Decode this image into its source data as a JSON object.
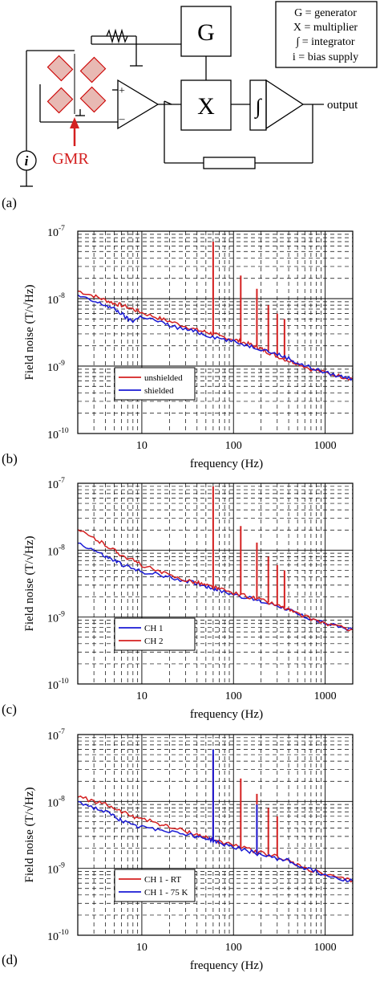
{
  "figure": {
    "panel_labels": [
      "(a)",
      "(b)",
      "(c)",
      "(d)"
    ],
    "legend_a": [
      "G = generator",
      "X = multiplier",
      "∫ = integrator",
      "i = bias supply"
    ],
    "legend_a_bold_prefix": "i",
    "blocks": {
      "generator": "G",
      "multiplier": "X",
      "integrator": "∫"
    },
    "bias_symbol": "i",
    "gmr_label": "GMR",
    "output_label": "output",
    "opamp_plus": "+",
    "opamp_minus": "–"
  },
  "chart_data": [
    {
      "type": "line",
      "panel": "(b)",
      "xlabel": "frequency (Hz)",
      "ylabel": "Field noise (T/√Hz)",
      "xscale": "log",
      "yscale": "log",
      "xlim": [
        2,
        2000
      ],
      "ylim": [
        1e-10,
        1e-07
      ],
      "xticks": [
        "10",
        "100",
        "1000"
      ],
      "yticks": [
        "10",
        "10",
        "10",
        "10"
      ],
      "ytick_exponents": [
        "-10",
        "-9",
        "-8",
        "-7"
      ],
      "grid": true,
      "legend_position": "lower-left",
      "series": [
        {
          "name": "unshielded",
          "color": "#d42020",
          "x": [
            2,
            3,
            4,
            5,
            6,
            8,
            10,
            15,
            20,
            30,
            40,
            50,
            60,
            70,
            100,
            120,
            150,
            180,
            200,
            240,
            300,
            400,
            500,
            700,
            1000,
            1500,
            2000
          ],
          "y": [
            1.3e-08,
            1.1e-08,
            9.5e-09,
            8.5e-09,
            8e-09,
            7e-09,
            6.2e-09,
            5.2e-09,
            4.6e-09,
            3.9e-09,
            3.4e-09,
            3.2e-09,
            3e-09,
            2.8e-09,
            2.5e-09,
            2.3e-09,
            2.1e-09,
            1.9e-09,
            1.8e-09,
            1.6e-09,
            1.4e-09,
            1.2e-09,
            1.1e-09,
            9e-10,
            8e-10,
            7e-10,
            6.5e-10
          ],
          "peaks": [
            [
              60,
              7e-08
            ],
            [
              120,
              2.2e-08
            ],
            [
              180,
              1.4e-08
            ],
            [
              240,
              8e-09
            ],
            [
              300,
              6e-09
            ],
            [
              360,
              5e-09
            ]
          ]
        },
        {
          "name": "shielded",
          "color": "#1a1ad4",
          "x": [
            2,
            3,
            4,
            5,
            6,
            7,
            8,
            10,
            15,
            20,
            30,
            40,
            50,
            70,
            100,
            150,
            200,
            300,
            400,
            500,
            700,
            1000,
            1500,
            2000
          ],
          "y": [
            1.1e-08,
            9e-09,
            8e-09,
            7e-09,
            6e-09,
            5e-09,
            4.7e-09,
            5.5e-09,
            4.6e-09,
            4e-09,
            3.5e-09,
            3.2e-09,
            2.9e-09,
            2.6e-09,
            2.3e-09,
            2e-09,
            1.8e-09,
            1.5e-09,
            1.3e-09,
            1.1e-09,
            9.5e-10,
            8e-10,
            7e-10,
            6.5e-10
          ],
          "peaks": []
        }
      ]
    },
    {
      "type": "line",
      "panel": "(c)",
      "xlabel": "frequency (Hz)",
      "ylabel": "Field noise (T/√Hz)",
      "xscale": "log",
      "yscale": "log",
      "xlim": [
        2,
        2000
      ],
      "ylim": [
        1e-10,
        1e-07
      ],
      "xticks": [
        "10",
        "100",
        "1000"
      ],
      "yticks": [
        "10",
        "10",
        "10",
        "10"
      ],
      "ytick_exponents": [
        "-10",
        "-9",
        "-8",
        "-7"
      ],
      "grid": true,
      "legend_position": "lower-left",
      "series": [
        {
          "name": "CH 1",
          "color": "#1a1ad4",
          "x": [
            2,
            3,
            4,
            5,
            6,
            8,
            10,
            15,
            20,
            30,
            40,
            50,
            60,
            70,
            100,
            150,
            200,
            300,
            400,
            500,
            700,
            1000,
            1500,
            2000
          ],
          "y": [
            1.3e-08,
            1e-08,
            8e-09,
            7e-09,
            6.2e-09,
            5.2e-09,
            4.8e-09,
            4.3e-09,
            3.9e-09,
            3.5e-09,
            3.2e-09,
            2.9e-09,
            2.7e-09,
            2.5e-09,
            2.2e-09,
            1.9e-09,
            1.7e-09,
            1.5e-09,
            1.3e-09,
            1.1e-09,
            9.5e-10,
            8e-10,
            7e-10,
            6.5e-10
          ],
          "peaks": []
        },
        {
          "name": "CH 2",
          "color": "#d42020",
          "x": [
            2,
            3,
            4,
            5,
            6,
            8,
            10,
            15,
            20,
            30,
            40,
            50,
            60,
            70,
            100,
            150,
            200,
            300,
            400,
            500,
            700,
            1000,
            1500,
            2000
          ],
          "y": [
            2e-08,
            1.5e-08,
            1.2e-08,
            1e-08,
            8.5e-09,
            7e-09,
            6e-09,
            4.8e-09,
            4.2e-09,
            3.6e-09,
            3.3e-09,
            3e-09,
            2.8e-09,
            2.6e-09,
            2.3e-09,
            2e-09,
            1.8e-09,
            1.5e-09,
            1.3e-09,
            1.1e-09,
            9.5e-10,
            8e-10,
            7e-10,
            6.5e-10
          ],
          "peaks": [
            [
              60,
              9e-08
            ],
            [
              120,
              2.3e-08
            ],
            [
              180,
              1.3e-08
            ],
            [
              240,
              8e-09
            ],
            [
              300,
              6e-09
            ],
            [
              360,
              5e-09
            ]
          ]
        }
      ]
    },
    {
      "type": "line",
      "panel": "(d)",
      "xlabel": "frequency (Hz)",
      "ylabel": "Field noise (T/√Hz)",
      "xscale": "log",
      "yscale": "log",
      "xlim": [
        2,
        2000
      ],
      "ylim": [
        1e-10,
        1e-07
      ],
      "xticks": [
        "10",
        "100",
        "1000"
      ],
      "yticks": [
        "10",
        "10",
        "10",
        "10"
      ],
      "ytick_exponents": [
        "-10",
        "-9",
        "-8",
        "-7"
      ],
      "grid": true,
      "legend_position": "lower-left",
      "series": [
        {
          "name": "CH 1 - RT",
          "color": "#d42020",
          "x": [
            2,
            3,
            4,
            5,
            6,
            8,
            10,
            15,
            20,
            30,
            40,
            50,
            60,
            70,
            100,
            150,
            200,
            300,
            400,
            500,
            700,
            1000,
            1500,
            2000
          ],
          "y": [
            1.2e-08,
            1e-08,
            9e-09,
            8e-09,
            7e-09,
            6e-09,
            5.6e-09,
            4.7e-09,
            4.1e-09,
            3.6e-09,
            3.2e-09,
            2.9e-09,
            2.7e-09,
            2.5e-09,
            2.2e-09,
            1.9e-09,
            1.7e-09,
            1.5e-09,
            1.3e-09,
            1.1e-09,
            9.5e-10,
            8e-10,
            7e-10,
            6.5e-10
          ],
          "peaks": [
            [
              60,
              5e-08
            ],
            [
              120,
              2.2e-08
            ],
            [
              180,
              1.3e-08
            ],
            [
              240,
              8e-09
            ],
            [
              300,
              6e-09
            ]
          ]
        },
        {
          "name": "CH 1 - 75 K",
          "color": "#1a1ad4",
          "x": [
            2,
            3,
            4,
            5,
            6,
            8,
            10,
            15,
            20,
            30,
            40,
            50,
            60,
            70,
            100,
            150,
            200,
            300,
            400,
            500,
            700,
            1000,
            1500,
            2000
          ],
          "y": [
            1e-08,
            8e-09,
            7e-09,
            6e-09,
            5.2e-09,
            4.3e-09,
            4.1e-09,
            3.9e-09,
            3.6e-09,
            3.3e-09,
            3e-09,
            2.8e-09,
            2.6e-09,
            2.4e-09,
            2.1e-09,
            1.8e-09,
            1.6e-09,
            1.4e-09,
            1.3e-09,
            1.1e-09,
            9.5e-10,
            8e-10,
            7e-10,
            6.5e-10
          ],
          "peaks": [
            [
              60,
              6e-08
            ],
            [
              180,
              9e-09
            ]
          ]
        }
      ]
    }
  ]
}
